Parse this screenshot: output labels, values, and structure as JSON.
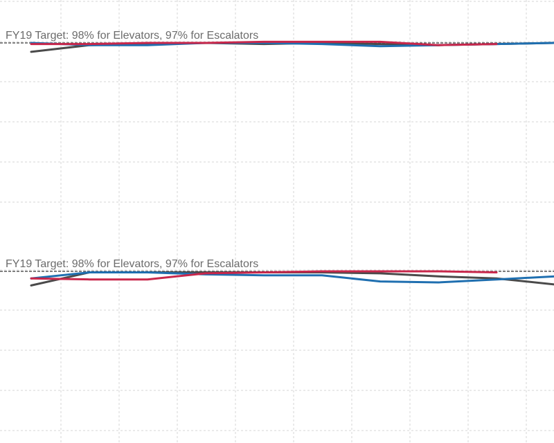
{
  "chart_data": [
    {
      "type": "line",
      "title": "",
      "xlabel": "",
      "ylabel": "",
      "x": [
        1,
        2,
        3,
        4,
        5,
        6,
        7,
        8,
        9,
        10
      ],
      "ylim": [
        0.8,
        1.0
      ],
      "grid": true,
      "target": {
        "value": 0.98,
        "label": "FY19 Target: 98% for Elevators, 97% for Escalators"
      },
      "series": [
        {
          "color": "#4a4a4a",
          "values": [
            0.972,
            0.978,
            0.979,
            0.98,
            0.979,
            0.98,
            0.979,
            0.978,
            0.979,
            0.98
          ]
        },
        {
          "color": "#1f6fb0",
          "values": [
            0.98,
            0.978,
            0.978,
            0.98,
            0.98,
            0.979,
            0.977,
            0.978,
            0.979,
            0.98
          ]
        },
        {
          "color": "#c8274b",
          "values": [
            0.979,
            0.979,
            0.98,
            0.98,
            0.981,
            0.981,
            0.981,
            0.978,
            0.979,
            null
          ]
        }
      ]
    },
    {
      "type": "line",
      "title": "",
      "xlabel": "",
      "ylabel": "",
      "x": [
        1,
        2,
        3,
        4,
        5,
        6,
        7,
        8,
        9,
        10
      ],
      "ylim": [
        0.8,
        1.0
      ],
      "grid": true,
      "target": {
        "value": 0.97,
        "label": "FY19 Target: 98% for Elevators, 97% for Escalators"
      },
      "series": [
        {
          "color": "#4a4a4a",
          "values": [
            0.956,
            0.969,
            0.969,
            0.969,
            0.969,
            0.969,
            0.968,
            0.965,
            0.963,
            0.957
          ]
        },
        {
          "color": "#1f6fb0",
          "values": [
            0.963,
            0.969,
            0.969,
            0.967,
            0.966,
            0.966,
            0.96,
            0.959,
            0.962,
            0.965
          ]
        },
        {
          "color": "#c8274b",
          "values": [
            0.963,
            0.962,
            0.962,
            0.968,
            0.969,
            0.97,
            0.97,
            0.97,
            0.969,
            null
          ]
        }
      ]
    }
  ]
}
